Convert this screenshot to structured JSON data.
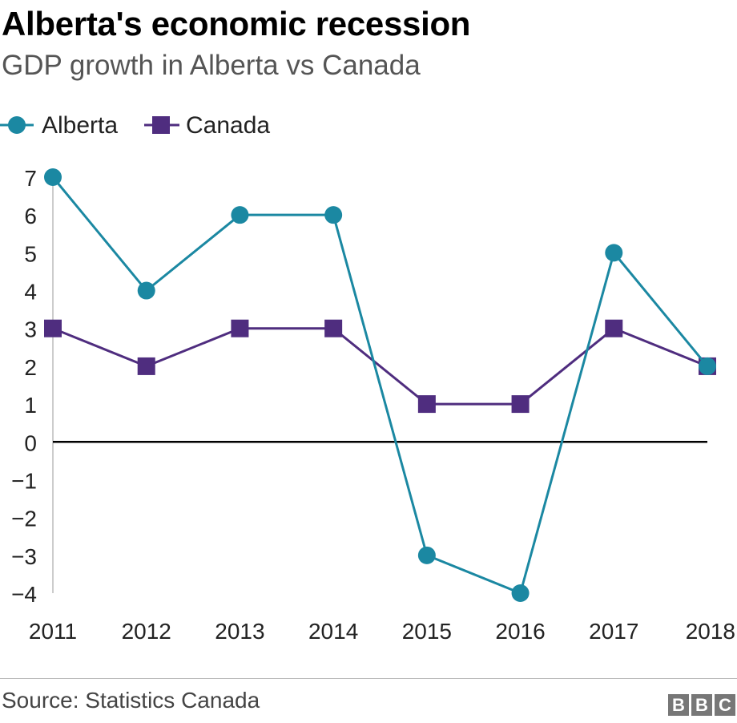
{
  "header": {
    "title": "Alberta's economic recession",
    "subtitle": "GDP growth in Alberta vs Canada"
  },
  "footer": {
    "source": "Source: Statistics Canada",
    "logo": [
      "B",
      "B",
      "C"
    ]
  },
  "colors": {
    "alberta": "#1b88a2",
    "canada": "#4f2d7f",
    "zero_line": "#000000",
    "axis": "#bbbbbb"
  },
  "chart_data": {
    "type": "line",
    "title": "Alberta's economic recession",
    "subtitle": "GDP growth in Alberta vs Canada",
    "categories": [
      "2011",
      "2012",
      "2013",
      "2014",
      "2015",
      "2016",
      "2017",
      "2018"
    ],
    "series": [
      {
        "name": "Alberta",
        "marker": "circle",
        "color": "#1b88a2",
        "values": [
          7,
          4,
          6,
          6,
          -3,
          -4,
          5,
          2
        ]
      },
      {
        "name": "Canada",
        "marker": "square",
        "color": "#4f2d7f",
        "values": [
          3,
          2,
          3,
          3,
          1,
          1,
          3,
          2
        ]
      }
    ],
    "ylim": [
      -4,
      7
    ],
    "yticks": [
      "7",
      "6",
      "5",
      "4",
      "3",
      "2",
      "1",
      "0",
      "−1",
      "−2",
      "−3",
      "−4"
    ],
    "xlabel": "",
    "ylabel": "",
    "grid": false,
    "legend": "top-left"
  }
}
